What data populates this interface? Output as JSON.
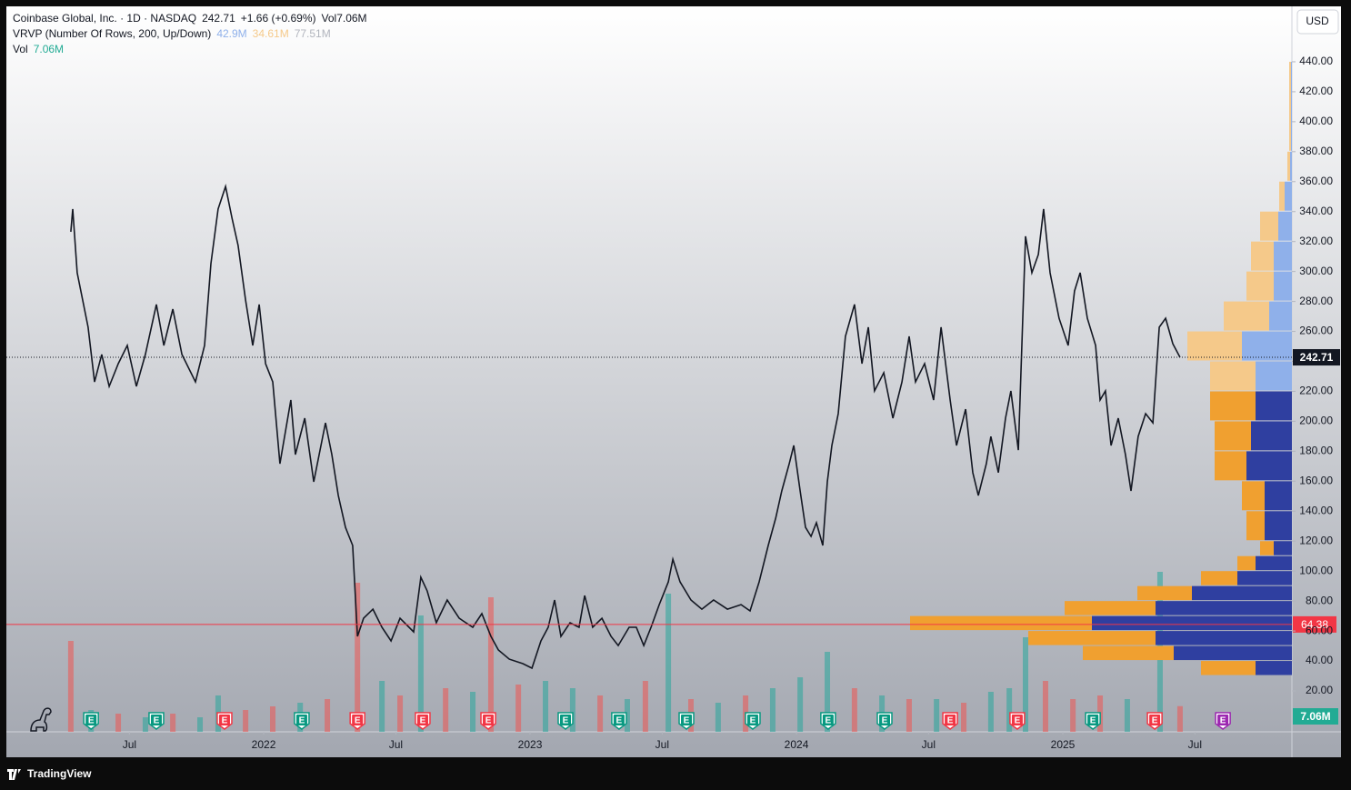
{
  "chart_data": {
    "type": "line",
    "legend": {
      "symbol": "Coinbase Global, Inc. · 1D · NASDAQ",
      "change": "+1.66 (+0.69%)",
      "vol_label": "Vol",
      "vol_value": "7.06M",
      "vrvp": "VRVP (Number Of Rows, 200, Up/Down)",
      "vrvp_up": "42.9M",
      "vrvp_down": "34.61M",
      "vrvp_total": "77.51M",
      "vol_pane_label": "Vol"
    },
    "currency": "USD",
    "brand": "TradingView",
    "x": [
      2021.276,
      2021.283,
      2021.3,
      2021.341,
      2021.365,
      2021.392,
      2021.42,
      2021.454,
      2021.488,
      2021.522,
      2021.556,
      2021.597,
      2021.625,
      2021.659,
      2021.693,
      2021.744,
      2021.778,
      2021.802,
      2021.829,
      2021.857,
      2021.881,
      2021.904,
      2021.932,
      2021.959,
      2021.983,
      2022.007,
      2022.034,
      2022.061,
      2022.102,
      2022.119,
      2022.154,
      2022.188,
      2022.232,
      2022.256,
      2022.28,
      2022.307,
      2022.334,
      2022.352,
      2022.375,
      2022.41,
      2022.444,
      2022.478,
      2022.512,
      2022.563,
      2022.59,
      2022.614,
      2022.648,
      2022.689,
      2022.734,
      2022.785,
      2022.819,
      2022.853,
      2022.881,
      2022.922,
      2022.973,
      2023.007,
      2023.041,
      2023.068,
      2023.092,
      2023.116,
      2023.15,
      2023.184,
      2023.205,
      2023.235,
      2023.27,
      2023.304,
      2023.331,
      2023.372,
      2023.399,
      2023.427,
      2023.454,
      2023.485,
      2023.519,
      2023.536,
      2023.563,
      2023.604,
      2023.645,
      2023.689,
      2023.741,
      2023.792,
      2023.826,
      2023.86,
      2023.894,
      2023.922,
      2023.945,
      2023.973,
      2023.99,
      2024.014,
      2024.034,
      2024.055,
      2024.075,
      2024.099,
      2024.116,
      2024.133,
      2024.157,
      2024.184,
      2024.218,
      2024.246,
      2024.27,
      2024.293,
      2024.328,
      2024.362,
      2024.396,
      2024.423,
      2024.447,
      2024.481,
      2024.515,
      2024.543,
      2024.577,
      2024.601,
      2024.635,
      2024.662,
      2024.683,
      2024.713,
      2024.73,
      2024.758,
      2024.785,
      2024.805,
      2024.833,
      2024.86,
      2024.884,
      2024.908,
      2024.928,
      2024.952,
      2024.986,
      2025.02,
      2025.044,
      2025.065,
      2025.092,
      2025.123,
      2025.14,
      2025.16,
      2025.181,
      2025.208,
      2025.235,
      2025.256,
      2025.283,
      2025.311,
      2025.338,
      2025.362,
      2025.386,
      2025.413,
      2025.44
    ],
    "series": [
      {
        "name": "COIN",
        "color": "#131722",
        "values": [
          326.5,
          341.7,
          299.2,
          262.8,
          226.3,
          244.6,
          223.3,
          238.5,
          250.6,
          223.3,
          244.6,
          278.0,
          250.6,
          274.9,
          244.6,
          226.3,
          250.6,
          305.3,
          341.7,
          356.8,
          335.6,
          317.4,
          281.0,
          250.6,
          278.0,
          238.5,
          226.3,
          171.7,
          214.2,
          177.8,
          202.1,
          159.6,
          199.0,
          177.8,
          150.5,
          129.2,
          117.1,
          56.4,
          68.5,
          74.6,
          62.5,
          53.4,
          68.5,
          59.4,
          95.9,
          86.7,
          65.5,
          80.7,
          68.5,
          62.5,
          71.6,
          56.4,
          47.3,
          41.2,
          38.2,
          35.2,
          53.4,
          62.5,
          80.7,
          56.4,
          65.5,
          62.5,
          83.7,
          62.5,
          68.5,
          56.4,
          50.3,
          62.5,
          62.5,
          50.3,
          62.5,
          77.6,
          92.8,
          107.9,
          92.8,
          80.7,
          74.6,
          80.7,
          74.6,
          77.6,
          73.4,
          92.8,
          117.1,
          135.3,
          153.5,
          171.7,
          183.9,
          153.5,
          129.2,
          123.2,
          132.3,
          117.1,
          159.6,
          183.9,
          205.1,
          256.7,
          278.0,
          238.5,
          262.8,
          220.3,
          232.4,
          202.1,
          226.3,
          256.7,
          226.3,
          238.5,
          214.2,
          262.8,
          214.2,
          183.9,
          208.1,
          165.7,
          150.5,
          171.7,
          189.9,
          165.7,
          202.1,
          220.3,
          180.8,
          323.5,
          299.2,
          311.3,
          341.7,
          299.2,
          268.8,
          250.6,
          287.0,
          299.2,
          268.8,
          250.6,
          214.2,
          220.3,
          183.9,
          202.1,
          177.8,
          153.5,
          189.9,
          205.1,
          199.0,
          262.8,
          268.8,
          251.8,
          242.71
        ]
      }
    ],
    "xlim": [
      2021.034,
      2025.86
    ],
    "ylim": [
      -7.3,
      477
    ],
    "xticks": [
      {
        "value": 2021.496,
        "label": "Jul"
      },
      2022,
      {
        "value": 2022.496,
        "label": "Jul"
      },
      2023,
      {
        "value": 2023.496,
        "label": "Jul"
      },
      2024,
      {
        "value": 2024.496,
        "label": "Jul"
      },
      2025,
      {
        "value": 2025.496,
        "label": "Jul"
      }
    ],
    "yticks": [
      {
        "value": 20,
        "label": "20.00"
      },
      {
        "value": 40,
        "label": "40.00"
      },
      {
        "value": 60,
        "label": "60.00"
      },
      {
        "value": 80,
        "label": "80.00"
      },
      {
        "value": 100,
        "label": "100.00"
      },
      {
        "value": 120,
        "label": "120.00"
      },
      {
        "value": 140,
        "label": "140.00"
      },
      {
        "value": 160,
        "label": "160.00"
      },
      {
        "value": 180,
        "label": "180.00"
      },
      {
        "value": 200,
        "label": "200.00"
      },
      {
        "value": 220,
        "label": "220.00"
      },
      {
        "value": 240,
        "label": "240.00"
      },
      {
        "value": 260,
        "label": "260.00"
      },
      {
        "value": 280,
        "label": "280.00"
      },
      {
        "value": 300,
        "label": "300.00"
      },
      {
        "value": 320,
        "label": "320.00"
      },
      {
        "value": 340,
        "label": "340.00"
      },
      {
        "value": 360,
        "label": "360.00"
      },
      {
        "value": 380,
        "label": "380.00"
      },
      {
        "value": 400,
        "label": "400.00"
      },
      {
        "value": 420,
        "label": "420.00"
      },
      {
        "value": 440,
        "label": "440.00"
      }
    ],
    "grid": false,
    "last_price": 242.71,
    "poc": 64.38,
    "poc_color": "#f23645",
    "volume": {
      "x": [
        2021.276,
        2021.352,
        2021.454,
        2021.556,
        2021.659,
        2021.761,
        2021.829,
        2021.932,
        2022.034,
        2022.137,
        2022.239,
        2022.352,
        2022.444,
        2022.512,
        2022.59,
        2022.683,
        2022.785,
        2022.853,
        2022.956,
        2023.058,
        2023.16,
        2023.263,
        2023.365,
        2023.433,
        2023.519,
        2023.604,
        2023.706,
        2023.809,
        2023.911,
        2024.014,
        2024.116,
        2024.218,
        2024.321,
        2024.423,
        2024.526,
        2024.628,
        2024.73,
        2024.799,
        2024.86,
        2024.935,
        2025.038,
        2025.14,
        2025.242,
        2025.365,
        2025.44
      ],
      "values": [
        25,
        6,
        5,
        4,
        5,
        4,
        10,
        6,
        7,
        8,
        9,
        41,
        14,
        10,
        32,
        12,
        11,
        37,
        13,
        14,
        12,
        10,
        9,
        14,
        38,
        9,
        8,
        10,
        12,
        15,
        22,
        12,
        10,
        9,
        9,
        8,
        11,
        12,
        26,
        14,
        9,
        10,
        9,
        44,
        7.06
      ],
      "up": [
        false,
        true,
        false,
        true,
        false,
        true,
        true,
        false,
        false,
        true,
        false,
        false,
        true,
        false,
        true,
        false,
        true,
        false,
        false,
        true,
        true,
        false,
        true,
        false,
        true,
        false,
        true,
        false,
        true,
        true,
        true,
        false,
        true,
        false,
        true,
        false,
        true,
        true,
        true,
        false,
        false,
        false,
        true,
        true,
        false
      ],
      "up_color": "#26a69a",
      "down_color": "#ef5350",
      "ylim": [
        0,
        50
      ]
    },
    "profile": {
      "bins": [
        30,
        40,
        50,
        60,
        70,
        80,
        90,
        100,
        110,
        120,
        140,
        160,
        180,
        200,
        220,
        240,
        260,
        280,
        300,
        320,
        340,
        360,
        380,
        440
      ],
      "up": [
        0.4,
        1.3,
        1.5,
        2.2,
        1.5,
        1.1,
        0.6,
        0.4,
        0.2,
        0.3,
        0.3,
        0.5,
        0.45,
        0.4,
        0.4,
        0.55,
        0.25,
        0.2,
        0.2,
        0.15,
        0.08,
        0.02,
        0.01
      ],
      "down": [
        0.6,
        1.0,
        1.4,
        2.0,
        1.0,
        0.6,
        0.4,
        0.2,
        0.15,
        0.2,
        0.25,
        0.35,
        0.4,
        0.5,
        0.5,
        0.6,
        0.5,
        0.3,
        0.25,
        0.2,
        0.06,
        0.03,
        0.02
      ],
      "xlim": [
        0,
        5
      ],
      "value_area": [
        30,
        220
      ],
      "up_color": "#2f3fa0",
      "down_color": "#f0a030",
      "up_color_outside": "#8fb0ea",
      "down_color_outside": "#f5c98a"
    },
    "events": [
      {
        "x": 2021.352,
        "label": "E",
        "color": "#089981"
      },
      {
        "x": 2021.597,
        "label": "E",
        "color": "#089981"
      },
      {
        "x": 2021.853,
        "label": "E",
        "color": "#f23645"
      },
      {
        "x": 2022.143,
        "label": "E",
        "color": "#089981"
      },
      {
        "x": 2022.352,
        "label": "E",
        "color": "#f23645"
      },
      {
        "x": 2022.597,
        "label": "E",
        "color": "#f23645"
      },
      {
        "x": 2022.843,
        "label": "E",
        "color": "#f23645"
      },
      {
        "x": 2023.133,
        "label": "E",
        "color": "#089981"
      },
      {
        "x": 2023.334,
        "label": "E",
        "color": "#089981"
      },
      {
        "x": 2023.587,
        "label": "E",
        "color": "#089981"
      },
      {
        "x": 2023.836,
        "label": "E",
        "color": "#089981"
      },
      {
        "x": 2024.119,
        "label": "E",
        "color": "#089981"
      },
      {
        "x": 2024.331,
        "label": "E",
        "color": "#089981"
      },
      {
        "x": 2024.577,
        "label": "E",
        "color": "#f23645"
      },
      {
        "x": 2024.829,
        "label": "E",
        "color": "#f23645"
      },
      {
        "x": 2025.113,
        "label": "E",
        "color": "#089981"
      },
      {
        "x": 2025.345,
        "label": "E",
        "color": "#f23645"
      },
      {
        "x": 2025.601,
        "label": "E",
        "color": "#9c27b0"
      }
    ]
  }
}
